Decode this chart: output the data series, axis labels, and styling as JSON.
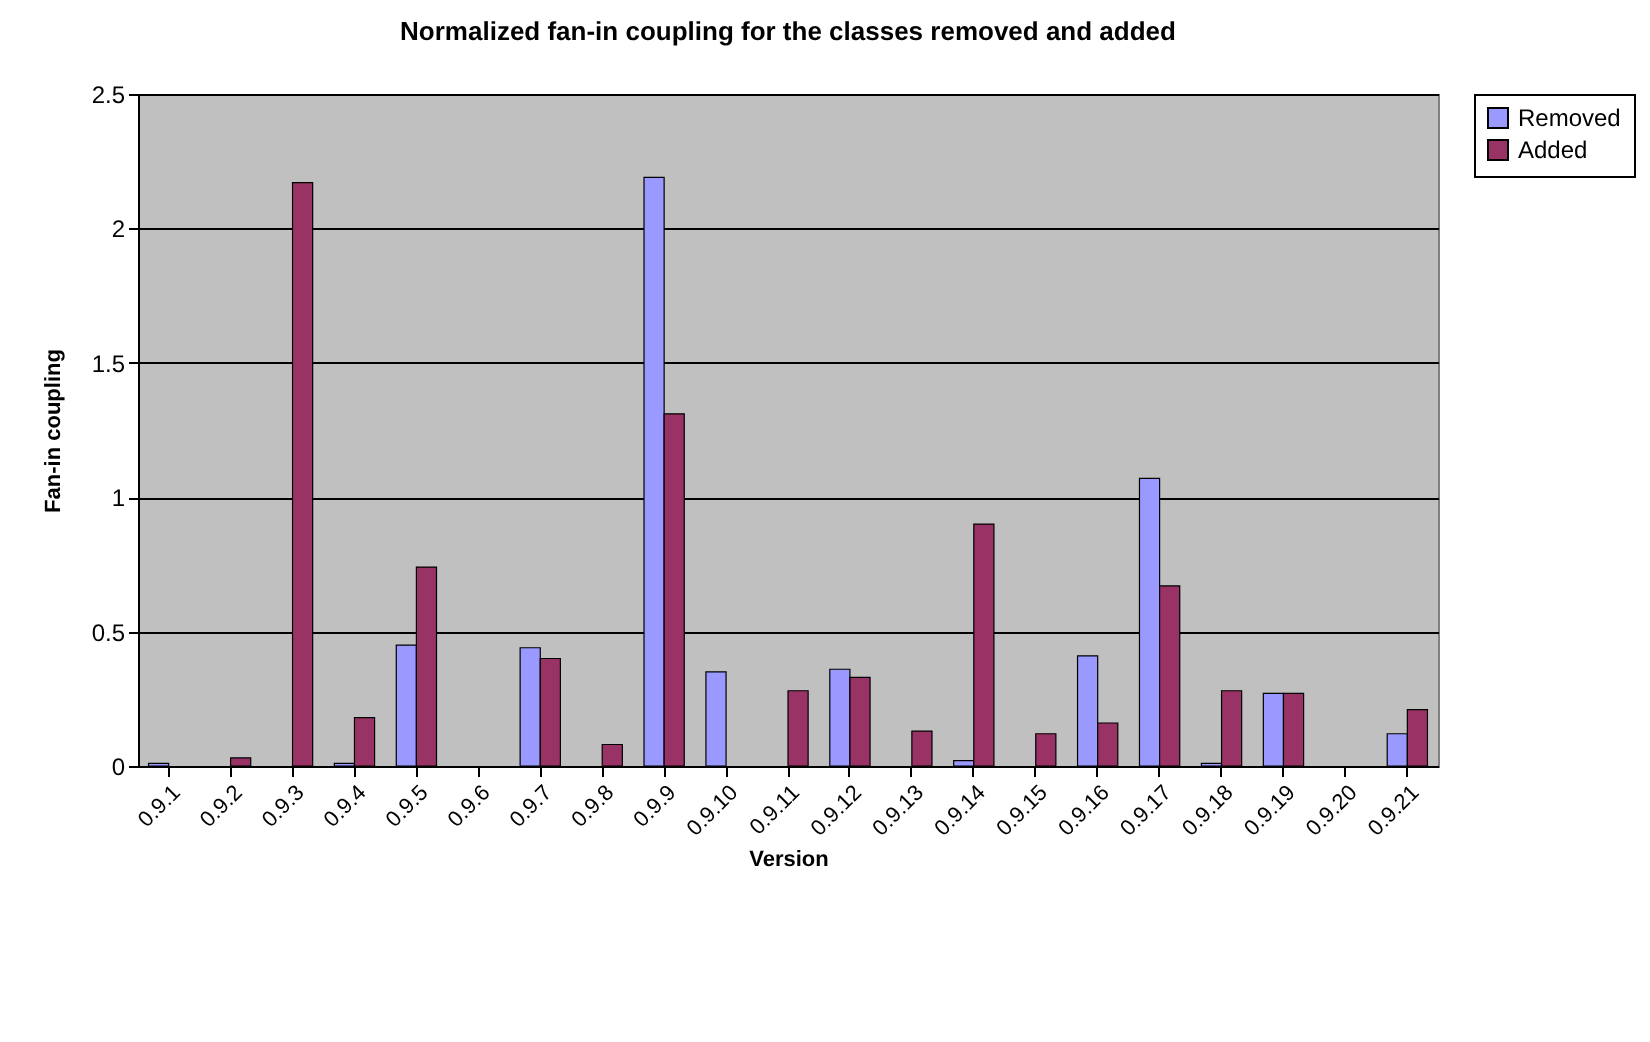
{
  "chart_data": {
    "type": "bar",
    "title": "Normalized fan-in coupling for the classes removed and added",
    "xlabel": "Version",
    "ylabel": "Fan-in coupling",
    "categories": [
      "0.9.1",
      "0.9.2",
      "0.9.3",
      "0.9.4",
      "0.9.5",
      "0.9.6",
      "0.9.7",
      "0.9.8",
      "0.9.9",
      "0.9.10",
      "0.9.11",
      "0.9.12",
      "0.9.13",
      "0.9.14",
      "0.9.15",
      "0.9.16",
      "0.9.17",
      "0.9.18",
      "0.9.19",
      "0.9.20",
      "0.9.21"
    ],
    "series": [
      {
        "name": "Removed",
        "color": "#9999ff",
        "values": [
          0.01,
          null,
          null,
          0.01,
          0.45,
          null,
          0.44,
          null,
          2.19,
          0.35,
          null,
          0.36,
          null,
          0.02,
          null,
          0.41,
          1.07,
          0.01,
          0.27,
          null,
          0.12
        ]
      },
      {
        "name": "Added",
        "color": "#993366",
        "values": [
          null,
          0.03,
          2.17,
          0.18,
          0.74,
          null,
          0.4,
          0.08,
          1.31,
          null,
          0.28,
          0.33,
          0.13,
          0.9,
          0.12,
          0.16,
          0.67,
          0.28,
          0.27,
          null,
          0.21
        ]
      }
    ],
    "ylim": [
      0,
      2.5
    ],
    "yticks": [
      0,
      0.5,
      1,
      1.5,
      2,
      2.5
    ],
    "grid": "y",
    "legend": "right"
  }
}
